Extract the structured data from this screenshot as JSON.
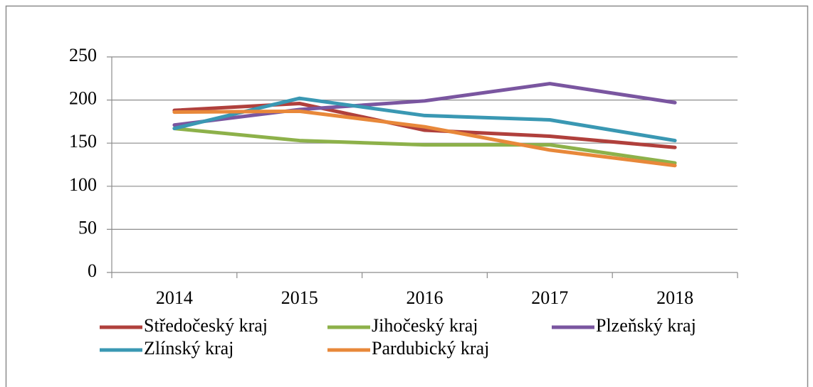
{
  "chart_data": {
    "type": "line",
    "categories": [
      "2014",
      "2015",
      "2016",
      "2017",
      "2018"
    ],
    "series": [
      {
        "name": "Středočeský kraj",
        "color": "#b0403c",
        "values": [
          188,
          196,
          165,
          158,
          145
        ]
      },
      {
        "name": "Jihočeský kraj",
        "color": "#8db14a",
        "values": [
          167,
          153,
          148,
          148,
          127
        ]
      },
      {
        "name": "Plzeňský kraj",
        "color": "#7a56a0",
        "values": [
          171,
          189,
          199,
          219,
          197
        ]
      },
      {
        "name": "Zlínský kraj",
        "color": "#3a98b3",
        "values": [
          167,
          202,
          182,
          177,
          153
        ]
      },
      {
        "name": "Pardubický kraj",
        "color": "#e8883a",
        "values": [
          186,
          187,
          169,
          142,
          124
        ]
      }
    ],
    "ylim": [
      0,
      250
    ],
    "yticks": [
      0,
      50,
      100,
      150,
      200,
      250
    ],
    "grid": true,
    "legend": "bottom"
  }
}
